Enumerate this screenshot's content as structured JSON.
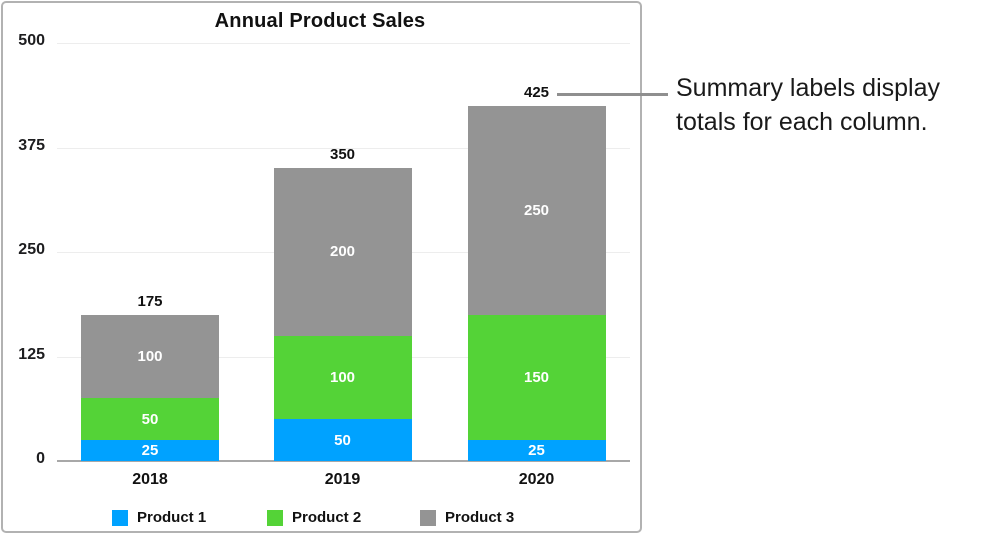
{
  "annotation": {
    "lines": [
      "Summary labels display",
      "totals for each column."
    ]
  },
  "chart_data": {
    "type": "bar",
    "subtype": "stacked",
    "title": "Annual Product Sales",
    "categories": [
      "2018",
      "2019",
      "2020"
    ],
    "series": [
      {
        "name": "Product 1",
        "color": "#00a2ff",
        "values": [
          25,
          50,
          25
        ]
      },
      {
        "name": "Product 2",
        "color": "#54d337",
        "values": [
          50,
          100,
          150
        ]
      },
      {
        "name": "Product 3",
        "color": "#949494",
        "values": [
          100,
          200,
          250
        ]
      }
    ],
    "totals": [
      175,
      350,
      425
    ],
    "y_ticks": [
      0,
      125,
      250,
      375,
      500
    ],
    "ylim": [
      0,
      500
    ],
    "xlabel": "",
    "ylabel": "",
    "grid": true,
    "legend_position": "bottom",
    "colors": {
      "grid": "#ededed",
      "axis_baseline": "#a8a8a8",
      "frame_border": "#b2b2b2",
      "callout_line": "#8f8f8f",
      "segment_label": "#ffffff",
      "text": "#111111"
    }
  }
}
